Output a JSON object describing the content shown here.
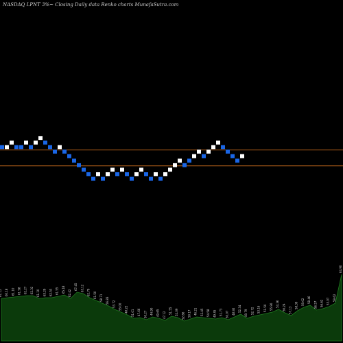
{
  "header": {
    "title": "NASDAQ LPNT 3%~ Closing Daily data Renko charts MunafaSutra.com"
  },
  "colors": {
    "background": "#000000",
    "up_brick": "#ffffff",
    "down_brick": "#1a66e6",
    "reference_line": "#b8621b",
    "volume_fill": "#0b3a0b",
    "volume_stroke": "#1f7a1f"
  },
  "chart_data": {
    "type": "renko",
    "renko": {
      "brick_levels": [
        0,
        0,
        1,
        0,
        0,
        1,
        0,
        1,
        2,
        1,
        0,
        -1,
        0,
        -1,
        -2,
        -3,
        -4,
        -5,
        -6,
        -7,
        -6,
        -7,
        -6,
        -5,
        -6,
        -5,
        -6,
        -7,
        -6,
        -5,
        -6,
        -7,
        -6,
        -7,
        -6,
        -5,
        -4,
        -3,
        -4,
        -3,
        -2,
        -1,
        -2,
        -1,
        0,
        1,
        0,
        -1,
        -2,
        -3,
        -2
      ],
      "brick_directions": [
        "down",
        "up",
        "up",
        "down",
        "down",
        "up",
        "down",
        "up",
        "up",
        "down",
        "down",
        "down",
        "up",
        "down",
        "down",
        "down",
        "down",
        "down",
        "down",
        "down",
        "up",
        "down",
        "up",
        "up",
        "down",
        "up",
        "down",
        "down",
        "up",
        "up",
        "down",
        "down",
        "up",
        "down",
        "up",
        "up",
        "up",
        "up",
        "down",
        "down",
        "up",
        "up",
        "down",
        "up",
        "up",
        "up",
        "down",
        "down",
        "down",
        "down",
        "up"
      ],
      "reference_levels": [
        -1,
        -4.5
      ]
    },
    "volume": {
      "values": [
        62,
        63,
        64,
        65,
        66,
        66,
        62,
        63,
        63,
        65,
        67,
        62,
        71,
        69,
        63,
        59,
        55,
        51,
        46,
        42,
        38,
        33,
        34,
        31,
        35,
        33,
        30,
        36,
        34,
        29,
        32,
        35,
        34,
        33,
        32,
        34,
        31,
        35,
        39,
        33,
        36,
        38,
        40,
        42,
        46,
        41,
        37,
        44,
        49,
        52,
        45,
        47,
        50,
        55,
        97
      ],
      "labels": [
        "61.15",
        "60.18",
        "61.10",
        "61.58",
        "62.27",
        "62.32",
        "61.10",
        "63.29",
        "62.53",
        "61.55",
        "65.18",
        "62.42",
        "67.45",
        "63.12",
        "62.79",
        "61.50",
        "58.71",
        "56.83",
        "53.72",
        "55.00",
        "48.22",
        "51.01",
        "47.66",
        "50.27",
        "44.90",
        "49.65",
        "47.12",
        "51.55",
        "52.09",
        "52.66",
        "50.17",
        "46.21",
        "53.45",
        "54.58",
        "49.45",
        "51.73",
        "50.07",
        "48.92",
        "52.34",
        "49.79",
        "52.72",
        "53.16",
        "51.50",
        "55.90",
        "54.36",
        "56.24",
        "57.13",
        "58.39",
        "59.02",
        "58.46",
        "56.57",
        "56.62",
        "53.07",
        "59.62",
        "64.90"
      ]
    }
  }
}
